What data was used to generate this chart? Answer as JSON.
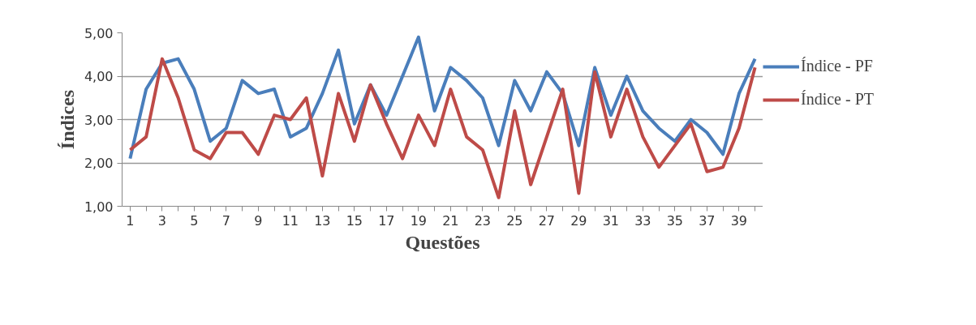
{
  "chart_data": {
    "type": "line",
    "xlabel": "Questões",
    "ylabel": "Índices",
    "x": [
      1,
      2,
      3,
      4,
      5,
      6,
      7,
      8,
      9,
      10,
      11,
      12,
      13,
      14,
      15,
      16,
      17,
      18,
      19,
      20,
      21,
      22,
      23,
      24,
      25,
      26,
      27,
      28,
      29,
      30,
      31,
      32,
      33,
      34,
      35,
      36,
      37,
      38,
      39,
      40
    ],
    "xlim": [
      0.5,
      40.5
    ],
    "xticks": [
      1,
      {
        "value": 2,
        "label": null
      },
      3,
      {
        "value": 4,
        "label": null
      },
      5,
      {
        "value": 6,
        "label": null
      },
      7,
      {
        "value": 8,
        "label": null
      },
      9,
      {
        "value": 10,
        "label": null
      },
      11,
      {
        "value": 12,
        "label": null
      },
      13,
      {
        "value": 14,
        "label": null
      },
      15,
      {
        "value": 16,
        "label": null
      },
      17,
      {
        "value": 18,
        "label": null
      },
      19,
      {
        "value": 20,
        "label": null
      },
      21,
      {
        "value": 22,
        "label": null
      },
      23,
      {
        "value": 24,
        "label": null
      },
      25,
      {
        "value": 26,
        "label": null
      },
      27,
      {
        "value": 28,
        "label": null
      },
      29,
      {
        "value": 30,
        "label": null
      },
      31,
      {
        "value": 32,
        "label": null
      },
      33,
      {
        "value": 34,
        "label": null
      },
      35,
      {
        "value": 36,
        "label": null
      },
      37,
      {
        "value": 38,
        "label": null
      },
      39,
      {
        "value": 40,
        "label": null
      }
    ],
    "ylim": [
      1,
      5
    ],
    "yticks": [
      {
        "value": 1,
        "label": "1,00"
      },
      {
        "value": 2,
        "label": "2,00"
      },
      {
        "value": 3,
        "label": "3,00"
      },
      {
        "value": 4,
        "label": "4,00"
      },
      {
        "value": 5,
        "label": "5,00"
      }
    ],
    "grid": "y",
    "legend": "right",
    "marker": "none",
    "line_style": "solid",
    "series": [
      {
        "name": "Índice - PF",
        "color": "#4a7ebb",
        "values": [
          2.1,
          3.7,
          4.3,
          4.4,
          3.7,
          2.5,
          2.8,
          3.9,
          3.6,
          3.7,
          2.6,
          2.8,
          3.6,
          4.6,
          2.9,
          3.8,
          3.1,
          4.0,
          4.9,
          3.2,
          4.2,
          3.9,
          3.5,
          2.4,
          3.9,
          3.2,
          4.1,
          3.6,
          2.4,
          4.2,
          3.1,
          4.0,
          3.2,
          2.8,
          2.5,
          3.0,
          2.7,
          2.2,
          3.6,
          4.4
        ]
      },
      {
        "name": "Índice - PT",
        "color": "#be4b48",
        "values": [
          2.3,
          2.6,
          4.4,
          3.5,
          2.3,
          2.1,
          2.7,
          2.7,
          2.2,
          3.1,
          3.0,
          3.5,
          1.7,
          3.6,
          2.5,
          3.8,
          2.9,
          2.1,
          3.1,
          2.4,
          3.7,
          2.6,
          2.3,
          1.2,
          3.2,
          1.5,
          2.6,
          3.7,
          1.3,
          4.1,
          2.6,
          3.7,
          2.6,
          1.9,
          2.4,
          2.9,
          1.8,
          1.9,
          2.8,
          4.2
        ]
      }
    ]
  }
}
